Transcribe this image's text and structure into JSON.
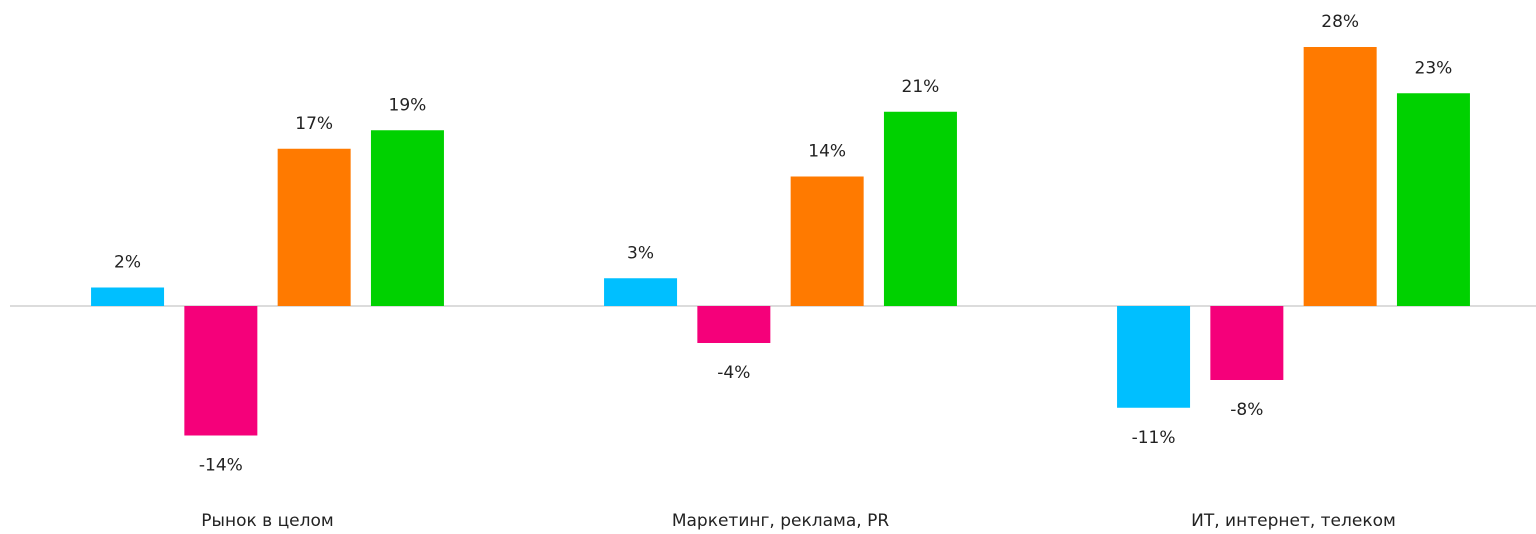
{
  "chart_data": {
    "type": "bar",
    "categories": [
      "Рынок в целом",
      "Маркетинг, реклама, PR",
      "ИТ, интернет, телеком"
    ],
    "series": [
      {
        "color": "#00bfff",
        "values": [
          2,
          3,
          -11
        ],
        "value_labels": [
          "2%",
          "3%",
          "-11%"
        ]
      },
      {
        "color": "#f5007a",
        "values": [
          -14,
          -4,
          -8
        ],
        "value_labels": [
          "-14%",
          "-4%",
          "-8%"
        ]
      },
      {
        "color": "#ff7a00",
        "values": [
          17,
          14,
          28
        ],
        "value_labels": [
          "17%",
          "14%",
          "28%"
        ]
      },
      {
        "color": "#00d100",
        "values": [
          19,
          21,
          23
        ],
        "value_labels": [
          "19%",
          "21%",
          "23%"
        ]
      }
    ],
    "ylim": [
      -20,
      30
    ]
  }
}
